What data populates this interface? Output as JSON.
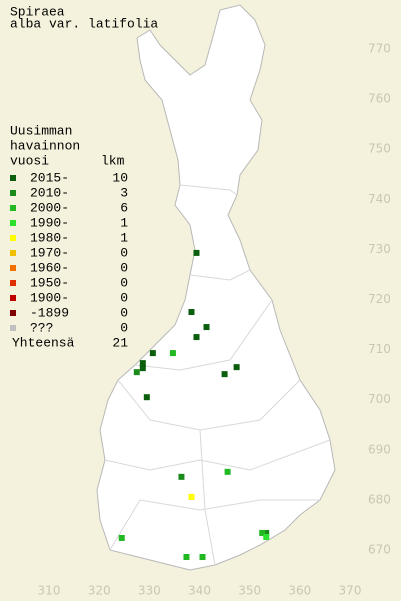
{
  "header": {
    "title": [
      "Spiraea",
      "alba var. latifolia"
    ]
  },
  "legend": {
    "heading": [
      "Uusimman",
      "havainnon",
      "vuosi"
    ],
    "count_heading": "lkm",
    "rows": [
      {
        "label": "2015-",
        "count": 10,
        "color": "#0b5e0b",
        "points": [
          {
            "x": 339.4,
            "y": 729.3
          },
          {
            "x": 338.4,
            "y": 717.5
          },
          {
            "x": 341.4,
            "y": 714.5
          },
          {
            "x": 339.4,
            "y": 712.5
          },
          {
            "x": 330.7,
            "y": 709.3
          },
          {
            "x": 328.7,
            "y": 707.3
          },
          {
            "x": 328.7,
            "y": 706.3
          },
          {
            "x": 347.4,
            "y": 706.5
          },
          {
            "x": 345.0,
            "y": 705.1
          },
          {
            "x": 329.5,
            "y": 700.5
          }
        ]
      },
      {
        "label": "2010-",
        "count": 3,
        "color": "#1a8a1a",
        "points": [
          {
            "x": 327.5,
            "y": 705.5
          },
          {
            "x": 336.4,
            "y": 684.6
          },
          {
            "x": 353.3,
            "y": 673.4
          }
        ]
      },
      {
        "label": "2000-",
        "count": 6,
        "color": "#22b822",
        "points": [
          {
            "x": 334.7,
            "y": 709.3
          },
          {
            "x": 345.6,
            "y": 685.6
          },
          {
            "x": 324.5,
            "y": 672.4
          },
          {
            "x": 337.4,
            "y": 668.6
          },
          {
            "x": 340.6,
            "y": 668.6
          },
          {
            "x": 352.5,
            "y": 673.4
          }
        ]
      },
      {
        "label": "1990-",
        "count": 1,
        "color": "#2ee02e",
        "points": [
          {
            "x": 353.3,
            "y": 672.6
          }
        ]
      },
      {
        "label": "1980-",
        "count": 1,
        "color": "#ffff00",
        "points": [
          {
            "x": 338.4,
            "y": 680.6
          }
        ]
      },
      {
        "label": "1970-",
        "count": 0,
        "color": "#f0c000",
        "points": []
      },
      {
        "label": "1960-",
        "count": 0,
        "color": "#f07000",
        "points": []
      },
      {
        "label": "1950-",
        "count": 0,
        "color": "#e03000",
        "points": []
      },
      {
        "label": "1900-",
        "count": 0,
        "color": "#c00000",
        "points": []
      },
      {
        "label": "-1899",
        "count": 0,
        "color": "#800000",
        "points": []
      },
      {
        "label": "???",
        "count": 0,
        "color": "#c0c0c0",
        "points": []
      }
    ],
    "total_label": "Yhteensä",
    "total": 21
  },
  "map": {
    "xticks": [
      310,
      320,
      330,
      340,
      350,
      360,
      370
    ],
    "yticks": [
      670,
      680,
      690,
      700,
      710,
      720,
      730,
      740,
      750,
      760,
      770
    ]
  }
}
